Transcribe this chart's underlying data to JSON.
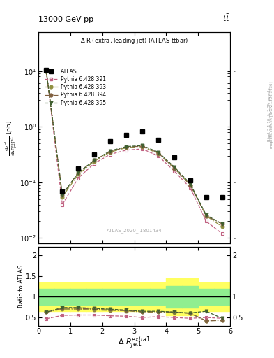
{
  "x_values": [
    0.25,
    0.75,
    1.25,
    1.75,
    2.25,
    2.75,
    3.25,
    3.75,
    4.25,
    4.75,
    5.25,
    5.75
  ],
  "atlas_y": [
    10.5,
    0.068,
    0.18,
    0.32,
    0.55,
    0.72,
    0.82,
    0.58,
    0.28,
    0.11,
    0.055,
    0.055
  ],
  "py391_y": [
    9.8,
    0.04,
    0.12,
    0.22,
    0.32,
    0.38,
    0.4,
    0.3,
    0.16,
    0.08,
    0.02,
    0.012
  ],
  "py393_y": [
    9.8,
    0.055,
    0.14,
    0.24,
    0.35,
    0.42,
    0.44,
    0.33,
    0.18,
    0.09,
    0.025,
    0.016
  ],
  "py394_y": [
    9.8,
    0.06,
    0.15,
    0.25,
    0.36,
    0.43,
    0.45,
    0.34,
    0.18,
    0.09,
    0.025,
    0.018
  ],
  "py395_y": [
    9.8,
    0.06,
    0.15,
    0.25,
    0.37,
    0.44,
    0.46,
    0.35,
    0.19,
    0.095,
    0.026,
    0.018
  ],
  "ratio_atlas_green_lo": [
    0.8,
    0.8,
    0.8,
    0.8,
    0.8,
    0.8,
    0.8,
    0.8,
    0.74,
    0.74,
    0.8,
    0.8
  ],
  "ratio_atlas_green_hi": [
    1.2,
    1.2,
    1.2,
    1.2,
    1.2,
    1.2,
    1.2,
    1.2,
    1.26,
    1.26,
    1.2,
    1.2
  ],
  "ratio_atlas_yellow_lo": [
    0.65,
    0.65,
    0.65,
    0.65,
    0.65,
    0.65,
    0.65,
    0.65,
    0.56,
    0.56,
    0.65,
    0.65
  ],
  "ratio_atlas_yellow_hi": [
    1.35,
    1.35,
    1.35,
    1.35,
    1.35,
    1.35,
    1.35,
    1.35,
    1.44,
    1.44,
    1.35,
    1.35
  ],
  "ratio391_y": [
    0.47,
    0.55,
    0.56,
    0.56,
    0.54,
    0.53,
    0.5,
    0.52,
    0.5,
    0.48,
    0.5,
    0.48
  ],
  "ratio393_y": [
    0.63,
    0.7,
    0.7,
    0.68,
    0.67,
    0.66,
    0.63,
    0.63,
    0.62,
    0.6,
    0.42,
    0.43
  ],
  "ratio394_y": [
    0.63,
    0.72,
    0.72,
    0.7,
    0.68,
    0.67,
    0.64,
    0.64,
    0.63,
    0.6,
    0.42,
    0.43
  ],
  "ratio395_y": [
    0.63,
    0.74,
    0.74,
    0.72,
    0.7,
    0.68,
    0.65,
    0.65,
    0.63,
    0.61,
    0.65,
    0.48
  ],
  "color391": "#c06080",
  "color393": "#909040",
  "color394": "#806040",
  "color395": "#406030",
  "xlim": [
    0,
    6
  ],
  "ylim_main": [
    0.008,
    50
  ],
  "ylim_ratio": [
    0.3,
    2.2
  ]
}
